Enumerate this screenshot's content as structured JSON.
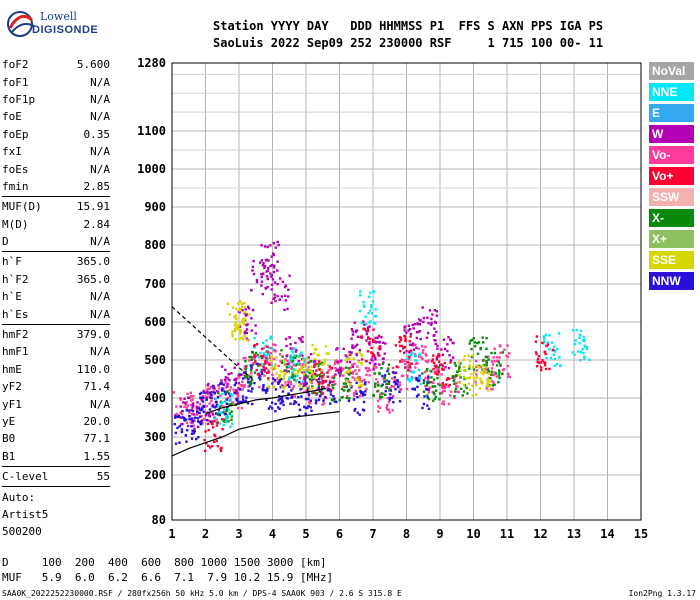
{
  "logo": {
    "line1": "Lowell",
    "line2": "DIGISONDE"
  },
  "header": {
    "line1": "Station YYYY DAY   DDD HHMMSS P1  FFS S AXN PPS IGA PS",
    "line2": "SaoLuis 2022 Sep09 252 230000 RSF     1 715 100 00- 11"
  },
  "params": {
    "group1": [
      {
        "k": "foF2",
        "v": "5.600"
      },
      {
        "k": "foF1",
        "v": "N/A"
      },
      {
        "k": "foF1p",
        "v": "N/A"
      },
      {
        "k": "foE",
        "v": "N/A"
      },
      {
        "k": "foEp",
        "v": "0.35"
      },
      {
        "k": "fxI",
        "v": "N/A"
      },
      {
        "k": "foEs",
        "v": "N/A"
      },
      {
        "k": "fmin",
        "v": "2.85"
      }
    ],
    "group2": [
      {
        "k": "MUF(D)",
        "v": "15.91"
      },
      {
        "k": "M(D)",
        "v": "2.84"
      },
      {
        "k": "D",
        "v": "N/A"
      }
    ],
    "group3": [
      {
        "k": "h`F",
        "v": "365.0"
      },
      {
        "k": "h`F2",
        "v": "365.0"
      },
      {
        "k": "h`E",
        "v": "N/A"
      },
      {
        "k": "h`Es",
        "v": "N/A"
      }
    ],
    "group4": [
      {
        "k": "hmF2",
        "v": "379.0"
      },
      {
        "k": "hmF1",
        "v": "N/A"
      },
      {
        "k": "hmE",
        "v": "110.0"
      },
      {
        "k": "yF2",
        "v": "71.4"
      },
      {
        "k": "yF1",
        "v": "N/A"
      },
      {
        "k": "yE",
        "v": "20.0"
      },
      {
        "k": "B0",
        "v": "77.1"
      },
      {
        "k": "B1",
        "v": "1.55"
      }
    ],
    "group5": [
      {
        "k": "C-level",
        "v": "55"
      }
    ]
  },
  "auto": {
    "l1": "Auto:",
    "l2": "Artist5",
    "l3": "500200"
  },
  "muf_table": {
    "d_line": "D     100  200  400  600  800 1000 1500 3000 [km]",
    "muf_line": "MUF   5.9  6.0  6.2  6.6  7.1  7.9 10.2 15.9 [MHz]"
  },
  "footer": "SAA0K_2022252230000.RSF / 280fx256h 50 kHz 5.0 km / DPS-4 SAA0K 903 / 2.6 S 315.8 E",
  "version": "Ion2Png 1.3.17",
  "legend": [
    {
      "label": "NoVal",
      "color": "#a6a6a6"
    },
    {
      "label": "NNE",
      "color": "#00e8f4"
    },
    {
      "label": "E",
      "color": "#33a8ee"
    },
    {
      "label": "W",
      "color": "#b400b4"
    },
    {
      "label": "Vo-",
      "color": "#ff3c9c"
    },
    {
      "label": "Vo+",
      "color": "#ff0033"
    },
    {
      "label": "SSW",
      "color": "#f5b0b0"
    },
    {
      "label": "X-",
      "color": "#0a8a0a"
    },
    {
      "label": "X+",
      "color": "#8fc060"
    },
    {
      "label": "SSE",
      "color": "#d6d600"
    },
    {
      "label": "NNW",
      "color": "#2a10d8"
    }
  ],
  "chart_data": {
    "type": "scatter",
    "x_ticks": [
      1,
      2,
      3,
      4,
      5,
      6,
      7,
      8,
      9,
      10,
      11,
      12,
      13,
      14,
      15
    ],
    "y_ticks": [
      80,
      200,
      300,
      400,
      500,
      600,
      700,
      800,
      900,
      1000,
      1100,
      1280
    ],
    "xlim": [
      1,
      15
    ],
    "ylim": [
      80,
      1280
    ],
    "y_scale": "nonlinear (compressed above 900 km)",
    "grid": true,
    "series": [
      {
        "color": "#ff3c9c",
        "values": [
          [
            1.3,
            380
          ],
          [
            1.8,
            370
          ],
          [
            2.3,
            390
          ],
          [
            2.8,
            420
          ],
          [
            3.3,
            470
          ],
          [
            3.8,
            500
          ],
          [
            4.3,
            480
          ],
          [
            4.8,
            450
          ],
          [
            5.3,
            430
          ],
          [
            5.8,
            470
          ],
          [
            6.3,
            450
          ],
          [
            6.8,
            470
          ],
          [
            7.3,
            410
          ],
          [
            7.8,
            470
          ],
          [
            8.3,
            500
          ],
          [
            8.8,
            460
          ],
          [
            9.3,
            430
          ],
          [
            10.3,
            470
          ],
          [
            10.8,
            500
          ]
        ]
      },
      {
        "color": "#b400b4",
        "values": [
          [
            1.5,
            360
          ],
          [
            2.1,
            400
          ],
          [
            2.7,
            450
          ],
          [
            3.2,
            600
          ],
          [
            3.6,
            720
          ],
          [
            3.9,
            770
          ],
          [
            4.2,
            680
          ],
          [
            4.6,
            520
          ],
          [
            5.1,
            480
          ],
          [
            6.1,
            500
          ],
          [
            6.6,
            560
          ],
          [
            7.1,
            520
          ],
          [
            8.1,
            560
          ],
          [
            8.6,
            600
          ],
          [
            9.1,
            520
          ]
        ]
      },
      {
        "color": "#2a10d8",
        "values": [
          [
            1.2,
            330
          ],
          [
            1.6,
            340
          ],
          [
            2.0,
            380
          ],
          [
            2.4,
            400
          ],
          [
            3.1,
            430
          ],
          [
            3.5,
            460
          ],
          [
            4.0,
            410
          ],
          [
            4.4,
            420
          ],
          [
            5.0,
            400
          ],
          [
            5.6,
            420
          ],
          [
            6.5,
            400
          ],
          [
            7.5,
            430
          ],
          [
            8.4,
            420
          ]
        ]
      },
      {
        "color": "#0a8a0a",
        "values": [
          [
            2.6,
            380
          ],
          [
            3.4,
            480
          ],
          [
            4.5,
            490
          ],
          [
            5.2,
            460
          ],
          [
            6.0,
            440
          ],
          [
            7.2,
            450
          ],
          [
            8.7,
            440
          ],
          [
            9.6,
            450
          ],
          [
            10.1,
            520
          ],
          [
            10.6,
            480
          ]
        ]
      },
      {
        "color": "#d6d600",
        "values": [
          [
            2.9,
            620
          ],
          [
            3.0,
            600
          ],
          [
            4.1,
            470
          ],
          [
            4.9,
            470
          ],
          [
            5.4,
            500
          ],
          [
            6.4,
            480
          ],
          [
            9.8,
            470
          ],
          [
            10.2,
            450
          ]
        ]
      },
      {
        "color": "#00e8f4",
        "values": [
          [
            2.5,
            370
          ],
          [
            3.7,
            520
          ],
          [
            4.7,
            490
          ],
          [
            6.8,
            640
          ],
          [
            8.2,
            480
          ],
          [
            12.3,
            530
          ],
          [
            13.2,
            540
          ]
        ]
      },
      {
        "color": "#ff0033",
        "values": [
          [
            2.2,
            310
          ],
          [
            3.6,
            500
          ],
          [
            5.5,
            460
          ],
          [
            6.9,
            540
          ],
          [
            7.9,
            520
          ],
          [
            9.0,
            480
          ],
          [
            12.1,
            520
          ]
        ]
      }
    ],
    "curves": [
      {
        "name": "",
        "color": "#000000",
        "style": "solid",
        "values": [
          [
            1,
            250
          ],
          [
            1.5,
            270
          ],
          [
            2,
            285
          ],
          [
            2.5,
            300
          ],
          [
            3,
            320
          ],
          [
            3.5,
            330
          ],
          [
            4,
            340
          ],
          [
            4.5,
            350
          ],
          [
            5,
            355
          ],
          [
            5.5,
            360
          ],
          [
            6,
            365
          ]
        ]
      },
      {
        "name": "",
        "color": "#000000",
        "style": "solid",
        "values": [
          [
            2,
            360
          ],
          [
            2.5,
            375
          ],
          [
            3,
            385
          ],
          [
            3.5,
            395
          ],
          [
            4,
            400
          ],
          [
            4.5,
            408
          ],
          [
            5,
            415
          ],
          [
            5.6,
            425
          ]
        ]
      },
      {
        "name": "",
        "color": "#000000",
        "style": "dashed",
        "values": [
          [
            1,
            640
          ],
          [
            1.5,
            600
          ],
          [
            2,
            560
          ],
          [
            2.5,
            520
          ],
          [
            3,
            480
          ],
          [
            3.4,
            450
          ]
        ]
      }
    ]
  }
}
